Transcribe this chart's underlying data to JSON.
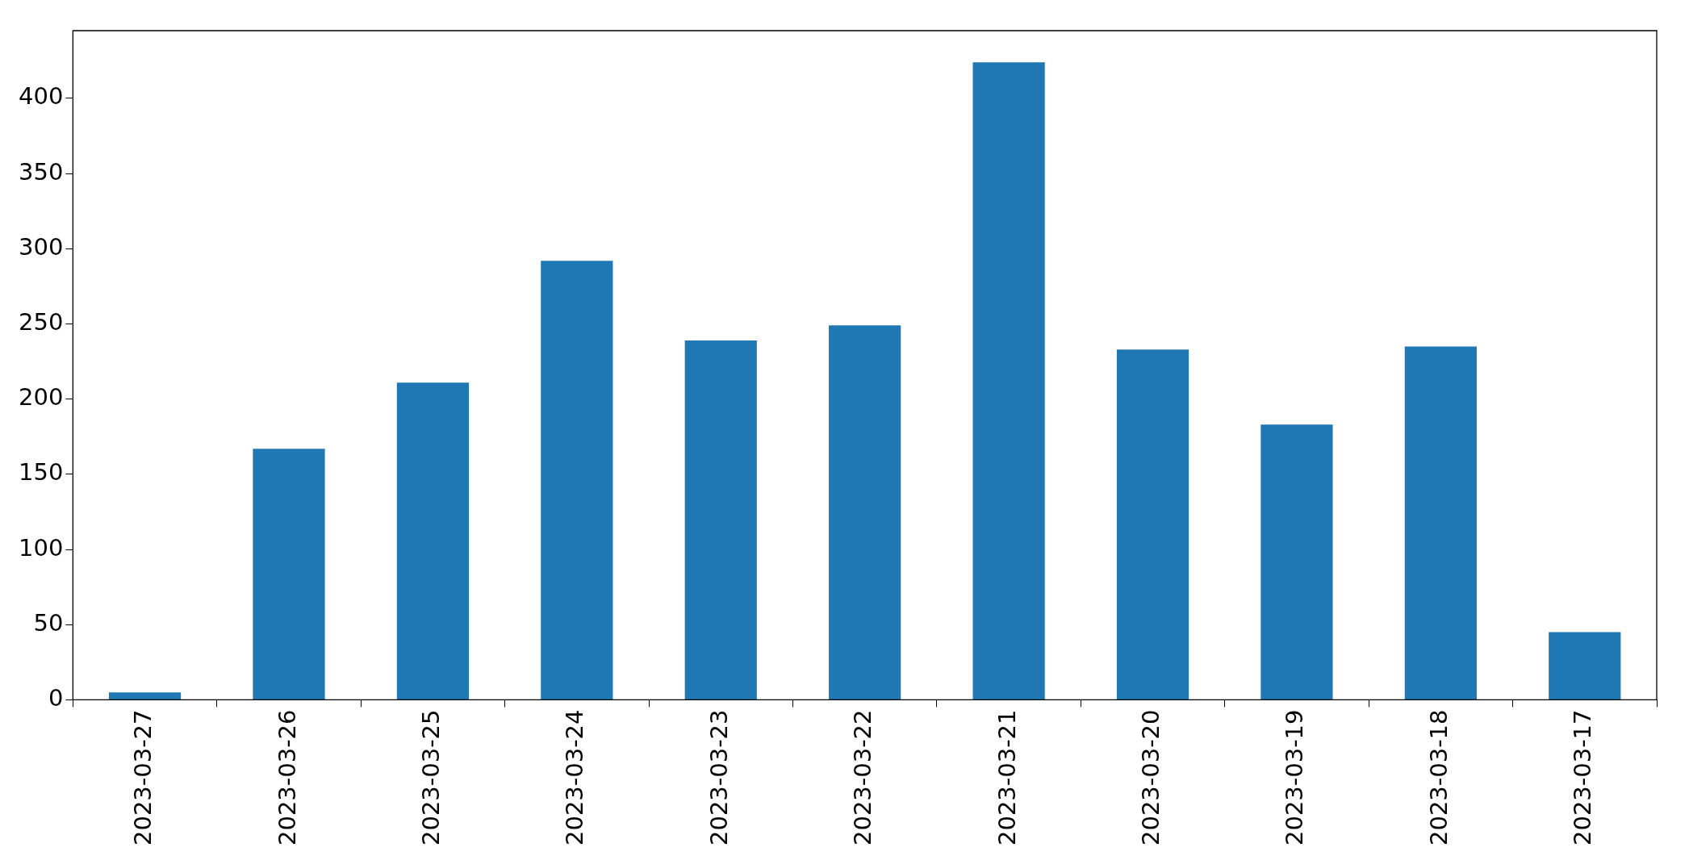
{
  "chart_data": {
    "type": "bar",
    "categories": [
      "2023-03-27",
      "2023-03-26",
      "2023-03-25",
      "2023-03-24",
      "2023-03-23",
      "2023-03-22",
      "2023-03-21",
      "2023-03-20",
      "2023-03-19",
      "2023-03-18",
      "2023-03-17"
    ],
    "values": [
      5,
      167,
      211,
      292,
      239,
      249,
      424,
      233,
      183,
      235,
      45
    ],
    "color": "#1f77b4",
    "ylim": [
      0,
      445
    ],
    "yticks": [
      0,
      50,
      100,
      150,
      200,
      250,
      300,
      350,
      400
    ]
  }
}
